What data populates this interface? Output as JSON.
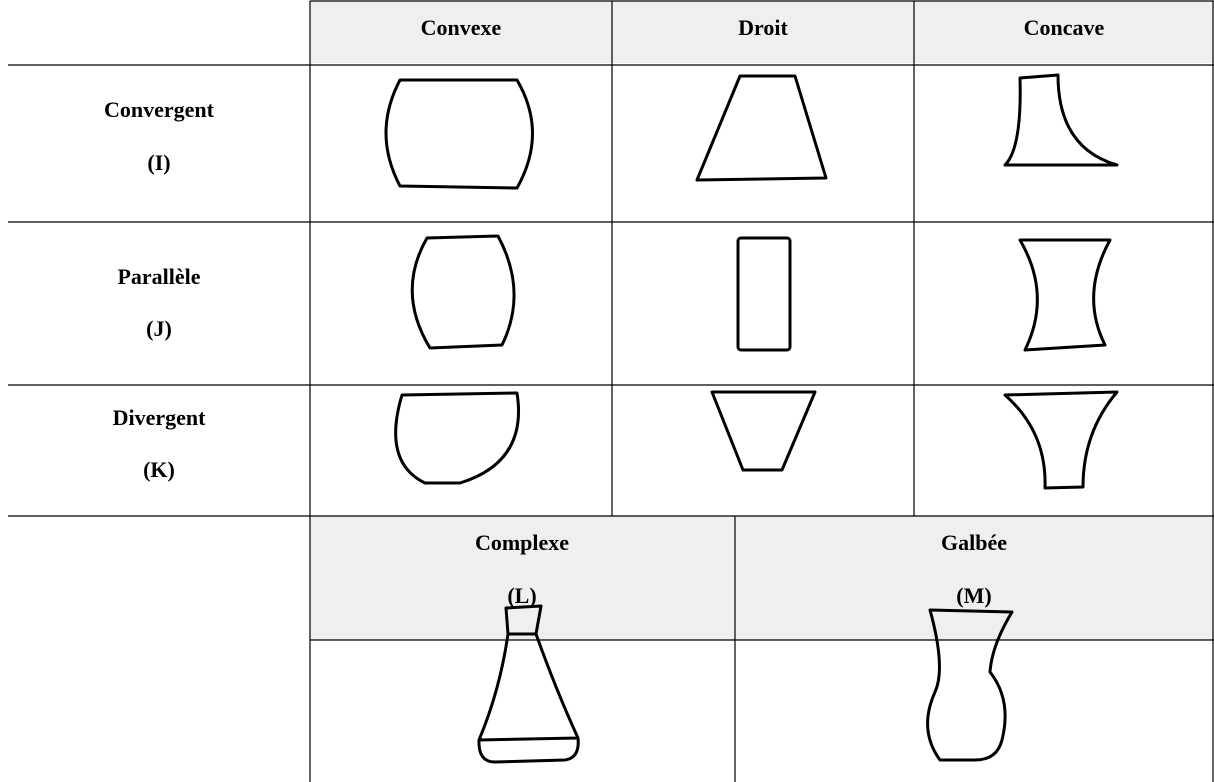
{
  "table": {
    "columns": [
      "Convexe",
      "Droit",
      "Concave"
    ],
    "rows": [
      {
        "label": "Convergent",
        "code": "(I)"
      },
      {
        "label": "Parallèle",
        "code": "(J)"
      },
      {
        "label": "Divergent",
        "code": "(K)"
      }
    ]
  },
  "extra": {
    "items": [
      {
        "label": "Complexe",
        "code": "(L)"
      },
      {
        "label": "Galbée",
        "code": "(M)"
      }
    ]
  }
}
